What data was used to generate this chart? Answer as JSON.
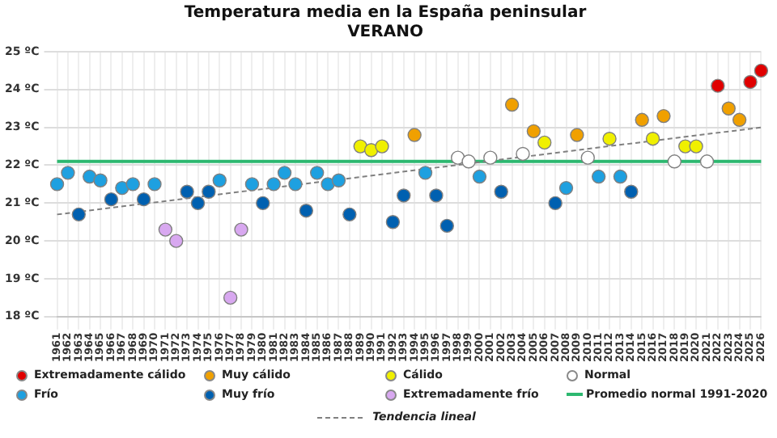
{
  "chart_data": {
    "type": "scatter",
    "title": "Temperatura media en la España peninsular",
    "subtitle": "VERANO",
    "categories": [
      "1961",
      "1962",
      "1963",
      "1964",
      "1965",
      "1966",
      "1967",
      "1968",
      "1969",
      "1970",
      "1971",
      "1972",
      "1973",
      "1974",
      "1975",
      "1976",
      "1977",
      "1978",
      "1979",
      "1980",
      "1981",
      "1982",
      "1983",
      "1984",
      "1985",
      "1986",
      "1987",
      "1988",
      "1989",
      "1990",
      "1991",
      "1992",
      "1993",
      "1994",
      "1995",
      "1996",
      "1997",
      "1998",
      "1999",
      "2000",
      "2001",
      "2002",
      "2003",
      "2004",
      "2005",
      "2006",
      "2007",
      "2008",
      "2009",
      "2010",
      "2011",
      "2012",
      "2013",
      "2014",
      "2015",
      "2016",
      "2017",
      "2018",
      "2019",
      "2020",
      "2021",
      "2022",
      "2023",
      "2024",
      "2025",
      "2026"
    ],
    "series": [
      {
        "name": "Extremadamente cálido",
        "color": "#e00000",
        "values": [
          null,
          null,
          null,
          null,
          null,
          null,
          null,
          null,
          null,
          null,
          null,
          null,
          null,
          null,
          null,
          null,
          null,
          null,
          null,
          null,
          null,
          null,
          null,
          null,
          null,
          null,
          null,
          null,
          null,
          null,
          null,
          null,
          null,
          null,
          null,
          null,
          null,
          null,
          null,
          null,
          null,
          null,
          null,
          null,
          null,
          null,
          null,
          null,
          null,
          null,
          null,
          null,
          null,
          null,
          null,
          null,
          null,
          null,
          null,
          null,
          null,
          24.1,
          null,
          null,
          24.2,
          24.5
        ]
      },
      {
        "name": "Muy cálido",
        "color": "#f0a000",
        "values": [
          null,
          null,
          null,
          null,
          null,
          null,
          null,
          null,
          null,
          null,
          null,
          null,
          null,
          null,
          null,
          null,
          null,
          null,
          null,
          null,
          null,
          null,
          null,
          null,
          null,
          null,
          null,
          null,
          null,
          null,
          null,
          null,
          null,
          22.8,
          null,
          null,
          null,
          null,
          null,
          null,
          null,
          null,
          23.6,
          null,
          22.9,
          null,
          null,
          null,
          22.8,
          null,
          null,
          null,
          null,
          null,
          23.2,
          null,
          23.3,
          null,
          null,
          null,
          null,
          null,
          23.5,
          23.2,
          null,
          null
        ]
      },
      {
        "name": "Cálido",
        "color": "#f0f000",
        "values": [
          null,
          null,
          null,
          null,
          null,
          null,
          null,
          null,
          null,
          null,
          null,
          null,
          null,
          null,
          null,
          null,
          null,
          null,
          null,
          null,
          null,
          null,
          null,
          null,
          null,
          null,
          null,
          null,
          22.5,
          22.4,
          22.5,
          null,
          null,
          null,
          null,
          null,
          null,
          null,
          null,
          null,
          null,
          null,
          null,
          null,
          null,
          22.6,
          null,
          null,
          null,
          null,
          null,
          22.7,
          null,
          null,
          null,
          22.7,
          null,
          null,
          22.5,
          22.5,
          null,
          null,
          null,
          null,
          null,
          null
        ]
      },
      {
        "name": "Normal",
        "color": "#ffffff",
        "values": [
          null,
          null,
          null,
          null,
          null,
          null,
          null,
          null,
          null,
          null,
          null,
          null,
          null,
          null,
          null,
          null,
          null,
          null,
          null,
          null,
          null,
          null,
          null,
          null,
          null,
          null,
          null,
          null,
          null,
          null,
          null,
          null,
          null,
          null,
          null,
          null,
          null,
          22.2,
          22.1,
          null,
          22.2,
          null,
          null,
          22.3,
          null,
          null,
          null,
          null,
          null,
          22.2,
          null,
          null,
          null,
          null,
          null,
          null,
          null,
          22.1,
          null,
          null,
          22.1,
          null,
          null,
          null,
          null,
          null
        ]
      },
      {
        "name": "Frío",
        "color": "#1ea0e0",
        "values": [
          21.5,
          21.8,
          null,
          21.7,
          21.6,
          null,
          21.4,
          21.5,
          null,
          21.5,
          null,
          null,
          null,
          null,
          null,
          21.6,
          null,
          null,
          21.5,
          null,
          21.5,
          21.8,
          21.5,
          null,
          21.8,
          21.5,
          21.6,
          null,
          null,
          null,
          null,
          null,
          null,
          null,
          21.8,
          null,
          null,
          null,
          null,
          21.7,
          null,
          null,
          null,
          null,
          null,
          null,
          null,
          21.4,
          null,
          null,
          21.7,
          null,
          21.7,
          null,
          null,
          null,
          null,
          null,
          null,
          null,
          null,
          null,
          null,
          null,
          null,
          null
        ]
      },
      {
        "name": "Muy frío",
        "color": "#0060b0",
        "values": [
          null,
          null,
          20.7,
          null,
          null,
          21.1,
          null,
          null,
          21.1,
          null,
          null,
          null,
          21.3,
          21.0,
          21.3,
          null,
          null,
          null,
          null,
          21.0,
          null,
          null,
          null,
          20.8,
          null,
          null,
          null,
          20.7,
          null,
          null,
          null,
          20.5,
          21.2,
          null,
          null,
          21.2,
          20.4,
          null,
          null,
          null,
          null,
          21.3,
          null,
          null,
          null,
          null,
          21.0,
          null,
          null,
          null,
          null,
          null,
          null,
          21.3,
          null,
          null,
          null,
          null,
          null,
          null,
          null,
          null,
          null,
          null,
          null,
          null
        ]
      },
      {
        "name": "Extremadamente frío",
        "color": "#d8a8f0",
        "values": [
          null,
          null,
          null,
          null,
          null,
          null,
          null,
          null,
          null,
          null,
          20.3,
          20.0,
          null,
          null,
          null,
          null,
          18.5,
          20.3,
          null,
          null,
          null,
          null,
          null,
          null,
          null,
          null,
          null,
          null,
          null,
          null,
          null,
          null,
          null,
          null,
          null,
          null,
          null,
          null,
          null,
          null,
          null,
          null,
          null,
          null,
          null,
          null,
          null,
          null,
          null,
          null,
          null,
          null,
          null,
          null,
          null,
          null,
          null,
          null,
          null,
          null,
          null,
          null,
          null,
          null,
          null,
          null
        ]
      },
      {
        "name": "Tendencia lineal",
        "type": "line",
        "color": "#808080",
        "line_style": "dashed",
        "marker": "none",
        "values": [
          20.7,
          null,
          null,
          null,
          null,
          null,
          null,
          null,
          null,
          null,
          null,
          null,
          null,
          null,
          null,
          null,
          null,
          null,
          null,
          null,
          null,
          null,
          null,
          null,
          null,
          null,
          null,
          null,
          null,
          null,
          null,
          null,
          null,
          null,
          null,
          null,
          null,
          null,
          null,
          null,
          null,
          null,
          null,
          null,
          null,
          null,
          null,
          null,
          null,
          null,
          null,
          null,
          null,
          null,
          null,
          null,
          null,
          null,
          null,
          null,
          null,
          null,
          null,
          null,
          null,
          23.0
        ]
      }
    ],
    "ref_lines": [
      {
        "axis": "y",
        "value": 22.1,
        "label": "Promedio normal 1991-2020",
        "color": "#2db870"
      }
    ],
    "ylim": [
      18,
      25
    ],
    "yticks": [
      {
        "value": 18,
        "label": "18 ºC"
      },
      {
        "value": 19,
        "label": "19 ºC"
      },
      {
        "value": 20,
        "label": "20 ºC"
      },
      {
        "value": 21,
        "label": "21 ºC"
      },
      {
        "value": 22,
        "label": "22 ºC"
      },
      {
        "value": 23,
        "label": "23 ºC"
      },
      {
        "value": 24,
        "label": "24 ºC"
      },
      {
        "value": 25,
        "label": "25 ºC"
      }
    ],
    "grid": true,
    "legend": "bottom",
    "marker": "circle"
  }
}
